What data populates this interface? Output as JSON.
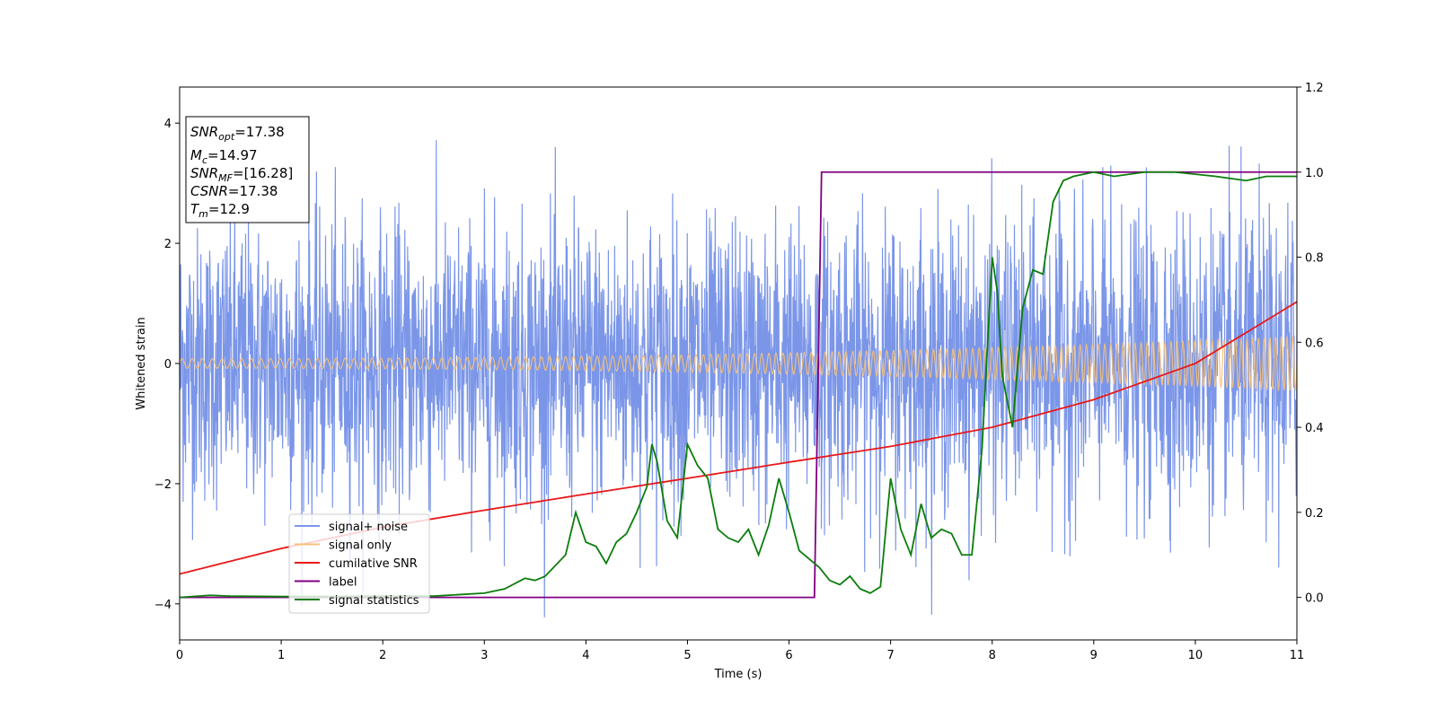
{
  "chart_data": {
    "type": "line",
    "xlabel": "Time (s)",
    "ylabel": "Whitened strain",
    "xlim": [
      0,
      11
    ],
    "ylim_left": [
      -4.6,
      4.6
    ],
    "ylim_right": [
      -0.1,
      1.2
    ],
    "x_ticks": [
      0,
      1,
      2,
      3,
      4,
      5,
      6,
      7,
      8,
      9,
      10,
      11
    ],
    "y_ticks_left": [
      -4,
      -2,
      0,
      2,
      4
    ],
    "y_ticks_right": [
      "0.0",
      "0.2",
      "0.4",
      "0.6",
      "0.8",
      "1.0",
      "1.2"
    ],
    "y_ticks_right_values": [
      0.0,
      0.2,
      0.4,
      0.6,
      0.8,
      1.0,
      1.2
    ],
    "grid": false,
    "legend_position": "lower-left",
    "annotation": {
      "lines": [
        {
          "sym": "SNR",
          "sub": "opt",
          "value": "=17.38"
        },
        {
          "sym": "M",
          "sub": "c",
          "value": "=14.97"
        },
        {
          "sym": "SNR",
          "sub": "MF",
          "value": "=[16.28]"
        },
        {
          "sym": "CSNR",
          "sub": "",
          "value": "=17.38"
        },
        {
          "sym": "T",
          "sub": "m",
          "value": "=12.9"
        }
      ]
    },
    "series": [
      {
        "name": "signal+ noise",
        "color": "#7b96e8",
        "axis": "left",
        "description_kind": "noise",
        "noise_std": 1.0,
        "peak_amplitude": 4.15
      },
      {
        "name": "signal only",
        "color": "#f5c07a",
        "axis": "left",
        "description_kind": "chirp",
        "amplitude_start": 0.08,
        "amplitude_end": 0.45,
        "frequency_start_hz": 10,
        "frequency_end_hz": 18
      },
      {
        "name": "cumilative SNR",
        "color": "#e8191a",
        "axis": "right",
        "x": [
          0,
          1,
          2,
          3,
          4,
          5,
          6,
          7,
          8,
          9,
          10,
          11
        ],
        "y": [
          0.055,
          0.115,
          0.165,
          0.205,
          0.243,
          0.28,
          0.318,
          0.355,
          0.4,
          0.465,
          0.55,
          0.695
        ]
      },
      {
        "name": "label",
        "color": "#800080",
        "axis": "right",
        "x": [
          0,
          6.25,
          6.32,
          11
        ],
        "y": [
          0,
          0,
          1,
          1
        ]
      },
      {
        "name": "signal statistics",
        "color": "#0b7d0b",
        "axis": "right",
        "x": [
          0,
          0.3,
          0.5,
          1.0,
          1.5,
          2.0,
          2.5,
          3.0,
          3.2,
          3.4,
          3.5,
          3.6,
          3.8,
          3.9,
          4.0,
          4.1,
          4.2,
          4.3,
          4.4,
          4.5,
          4.6,
          4.65,
          4.7,
          4.8,
          4.9,
          5.0,
          5.1,
          5.2,
          5.3,
          5.4,
          5.5,
          5.6,
          5.7,
          5.8,
          5.9,
          6.0,
          6.1,
          6.2,
          6.3,
          6.4,
          6.5,
          6.6,
          6.7,
          6.8,
          6.9,
          7.0,
          7.1,
          7.2,
          7.3,
          7.4,
          7.5,
          7.6,
          7.7,
          7.8,
          7.9,
          8.0,
          8.05,
          8.1,
          8.2,
          8.3,
          8.4,
          8.5,
          8.6,
          8.7,
          8.8,
          9.0,
          9.2,
          9.5,
          9.8,
          10.2,
          10.5,
          10.7,
          11.0
        ],
        "y": [
          0.0,
          0.005,
          0.003,
          0.002,
          0.002,
          0.003,
          0.003,
          0.01,
          0.02,
          0.045,
          0.04,
          0.05,
          0.1,
          0.2,
          0.13,
          0.12,
          0.08,
          0.13,
          0.15,
          0.2,
          0.26,
          0.36,
          0.32,
          0.18,
          0.14,
          0.36,
          0.31,
          0.28,
          0.16,
          0.14,
          0.13,
          0.16,
          0.1,
          0.17,
          0.28,
          0.2,
          0.11,
          0.09,
          0.07,
          0.04,
          0.03,
          0.05,
          0.02,
          0.01,
          0.025,
          0.28,
          0.16,
          0.1,
          0.22,
          0.14,
          0.16,
          0.15,
          0.1,
          0.1,
          0.35,
          0.8,
          0.72,
          0.52,
          0.4,
          0.68,
          0.77,
          0.76,
          0.93,
          0.98,
          0.99,
          1.0,
          0.99,
          1.0,
          1.0,
          0.99,
          0.98,
          0.99,
          0.99
        ]
      }
    ]
  }
}
